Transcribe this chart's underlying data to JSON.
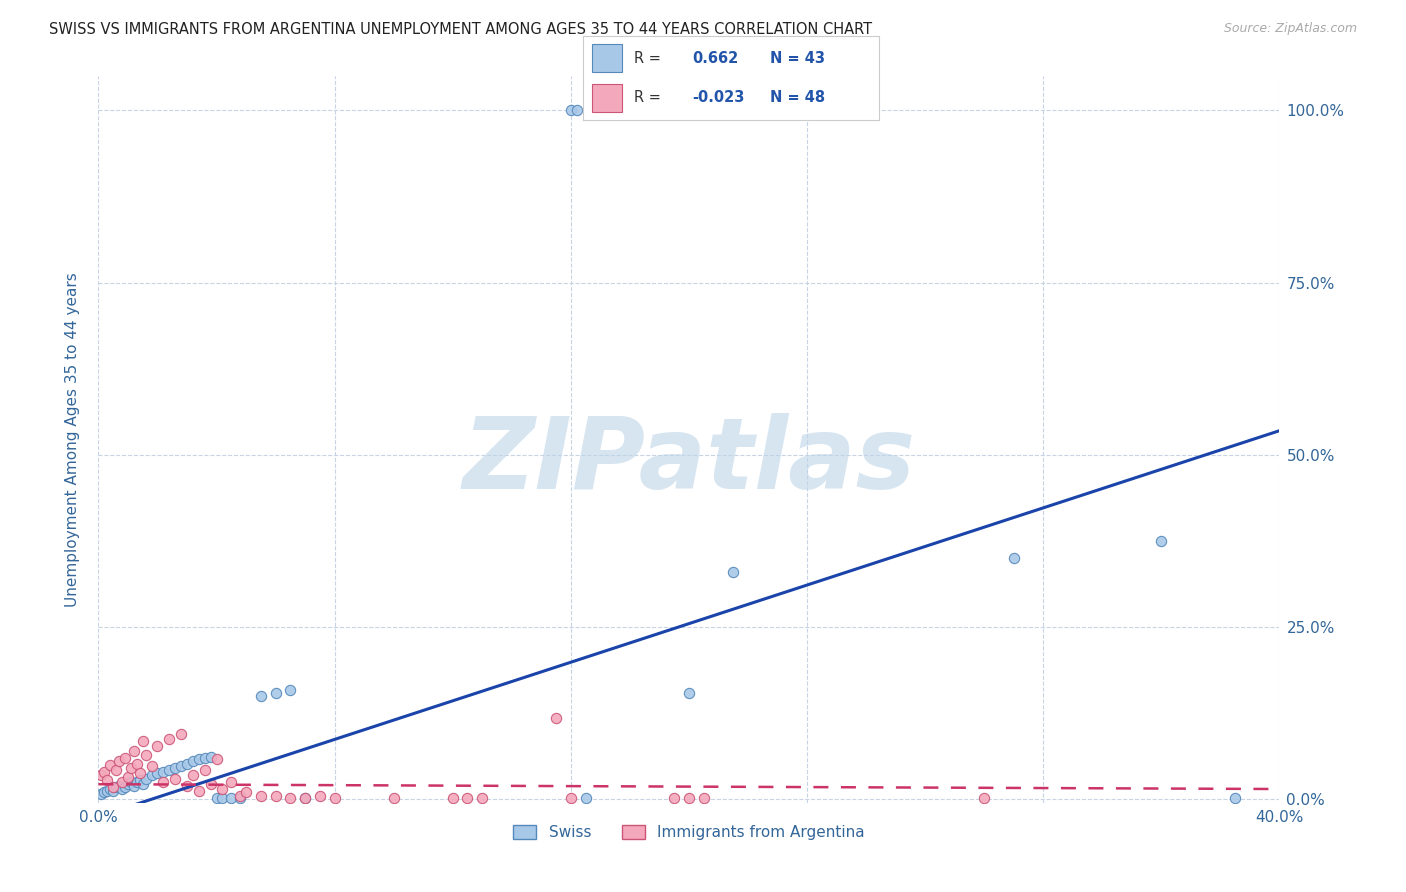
{
  "title": "SWISS VS IMMIGRANTS FROM ARGENTINA UNEMPLOYMENT AMONG AGES 35 TO 44 YEARS CORRELATION CHART",
  "source": "Source: ZipAtlas.com",
  "ylabel": "Unemployment Among Ages 35 to 44 years",
  "xlim": [
    0.0,
    0.4
  ],
  "ylim": [
    -0.005,
    1.05
  ],
  "xticks": [
    0.0,
    0.08,
    0.16,
    0.24,
    0.32,
    0.4
  ],
  "yticks": [
    0.0,
    0.25,
    0.5,
    0.75,
    1.0
  ],
  "xtick_labels": [
    "0.0%",
    "",
    "",
    "",
    "",
    "40.0%"
  ],
  "ytick_labels_right": [
    "0.0%",
    "25.0%",
    "50.0%",
    "75.0%",
    "100.0%"
  ],
  "swiss_color": "#a8c8e8",
  "argentina_color": "#f4a8bc",
  "swiss_edge_color": "#5588bb",
  "argentina_edge_color": "#cc5577",
  "trend_blue_color": "#1a44aa",
  "trend_pink_color": "#cc3366",
  "R_swiss": 0.662,
  "N_swiss": 43,
  "R_argentina": -0.023,
  "N_argentina": 48,
  "swiss_x": [
    0.001,
    0.002,
    0.003,
    0.004,
    0.005,
    0.006,
    0.007,
    0.008,
    0.009,
    0.01,
    0.011,
    0.012,
    0.013,
    0.014,
    0.015,
    0.016,
    0.018,
    0.02,
    0.022,
    0.024,
    0.026,
    0.028,
    0.03,
    0.032,
    0.034,
    0.036,
    0.038,
    0.04,
    0.042,
    0.045,
    0.048,
    0.055,
    0.06,
    0.065,
    0.07,
    0.16,
    0.162,
    0.165,
    0.2,
    0.215,
    0.31,
    0.36,
    0.385
  ],
  "swiss_y": [
    0.008,
    0.01,
    0.012,
    0.015,
    0.012,
    0.018,
    0.02,
    0.015,
    0.018,
    0.022,
    0.025,
    0.02,
    0.025,
    0.028,
    0.022,
    0.03,
    0.035,
    0.038,
    0.04,
    0.042,
    0.045,
    0.048,
    0.052,
    0.055,
    0.058,
    0.06,
    0.062,
    0.002,
    0.002,
    0.002,
    0.002,
    0.15,
    0.155,
    0.158,
    0.002,
    1.0,
    1.0,
    0.002,
    0.155,
    0.33,
    0.35,
    0.375,
    0.002
  ],
  "argentina_x": [
    0.001,
    0.002,
    0.003,
    0.004,
    0.005,
    0.006,
    0.007,
    0.008,
    0.009,
    0.01,
    0.011,
    0.012,
    0.013,
    0.014,
    0.015,
    0.016,
    0.018,
    0.02,
    0.022,
    0.024,
    0.026,
    0.028,
    0.03,
    0.032,
    0.034,
    0.036,
    0.038,
    0.04,
    0.042,
    0.045,
    0.048,
    0.05,
    0.055,
    0.06,
    0.065,
    0.07,
    0.075,
    0.08,
    0.1,
    0.12,
    0.125,
    0.13,
    0.155,
    0.16,
    0.195,
    0.2,
    0.205,
    0.3
  ],
  "argentina_y": [
    0.035,
    0.04,
    0.028,
    0.05,
    0.018,
    0.042,
    0.055,
    0.025,
    0.06,
    0.032,
    0.045,
    0.07,
    0.052,
    0.038,
    0.085,
    0.065,
    0.048,
    0.078,
    0.025,
    0.088,
    0.03,
    0.095,
    0.02,
    0.035,
    0.012,
    0.042,
    0.022,
    0.058,
    0.015,
    0.025,
    0.005,
    0.01,
    0.005,
    0.005,
    0.002,
    0.002,
    0.005,
    0.002,
    0.002,
    0.002,
    0.002,
    0.002,
    0.118,
    0.002,
    0.002,
    0.002,
    0.002,
    0.002
  ],
  "swiss_line_x": [
    0.0,
    0.4
  ],
  "swiss_line_y": [
    -0.025,
    0.535
  ],
  "arg_line_x": [
    0.0,
    0.4
  ],
  "arg_line_y": [
    0.022,
    0.015
  ],
  "watermark_text": "ZIPatlas",
  "watermark_color": "#bdd4e8",
  "background_color": "#ffffff",
  "grid_color": "#c8d4e4",
  "title_color": "#222222",
  "axis_label_color": "#336699",
  "tick_color": "#336699",
  "legend_R_color": "#2255aa",
  "legend_box_bg": "#ffffff",
  "legend_box_edge": "#cccccc",
  "marker_size": 55
}
